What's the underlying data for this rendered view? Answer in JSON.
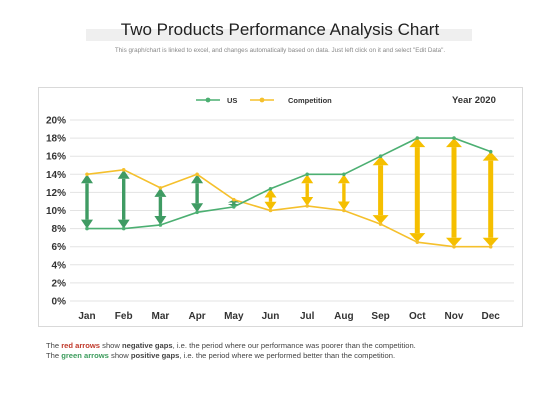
{
  "header": {
    "title": "Two Products Performance Analysis Chart",
    "subtitle": "This graph/chart is linked to excel, and changes automatically  based on data. Just left click on it and select \"Edit Data\"."
  },
  "year_label": "Year 2020",
  "footnote": {
    "line1_prefix": "The ",
    "line1_bold": "red arrows",
    "line1_mid": " show ",
    "line1_bold2": "negative gaps",
    "line1_suffix": ", i.e. the period where our performance was poorer than the competition.",
    "line2_prefix": "The ",
    "line2_bold": "green arrows",
    "line2_mid": " show ",
    "line2_bold2": "positive gaps",
    "line2_suffix": ", i.e. the period where we performed better than the competition."
  },
  "colors": {
    "us": "#4caf72",
    "competition": "#f5c02c",
    "arrow_positive": "#3f9b63",
    "arrow_negative": "#f5bf00",
    "grid": "#e3e3e3"
  },
  "chart_data": {
    "type": "line",
    "title": "Two Products Performance Analysis Chart",
    "categories": [
      "Jan",
      "Feb",
      "Mar",
      "Apr",
      "May",
      "Jun",
      "Jul",
      "Aug",
      "Sep",
      "Oct",
      "Nov",
      "Dec"
    ],
    "series": [
      {
        "name": "US",
        "values": [
          8,
          8,
          8.4,
          9.8,
          10.4,
          12.4,
          14,
          14,
          16,
          18,
          18,
          16.5
        ]
      },
      {
        "name": "Competition",
        "values": [
          14,
          14.5,
          12.5,
          14,
          11.2,
          10,
          10.5,
          10,
          8.5,
          6.5,
          6,
          6
        ]
      }
    ],
    "yticks": [
      "0%",
      "2%",
      "4%",
      "6%",
      "8%",
      "10%",
      "12%",
      "14%",
      "16%",
      "18%",
      "20%"
    ],
    "ylim": [
      0,
      20
    ],
    "legend_position": "top",
    "grid": true
  }
}
